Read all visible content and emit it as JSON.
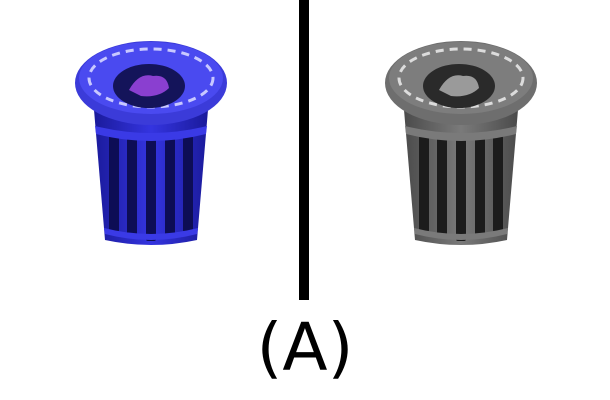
{
  "panels": [
    {
      "id": "color",
      "icon": "trash-can-icon",
      "colors": {
        "rim": "#3b3bd9",
        "rim_top": "#4a4af0",
        "rim_dash": "#c8c8ff",
        "opening": "#14145a",
        "trash": "#8a3fd0",
        "body": "#2a2ad0",
        "slat_dark": "#0d0d55",
        "slat_light": "#3a3ae6"
      }
    },
    {
      "id": "grayscale",
      "icon": "trash-can-icon",
      "colors": {
        "rim": "#6e6e6e",
        "rim_top": "#7d7d7d",
        "rim_dash": "#dcdcdc",
        "opening": "#2a2a2a",
        "trash": "#9a9a9a",
        "body": "#666666",
        "slat_dark": "#1c1c1c",
        "slat_light": "#7a7a7a"
      }
    }
  ],
  "caption": "(A)"
}
